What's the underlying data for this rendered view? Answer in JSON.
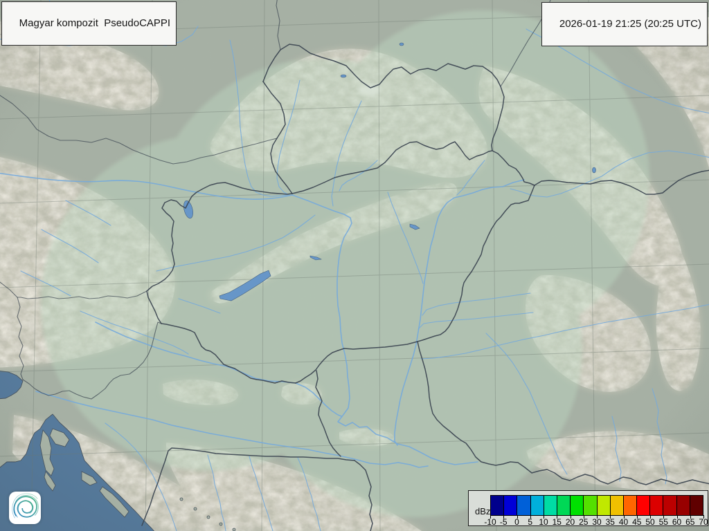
{
  "header": {
    "product_label": "Magyar kompozit  PseudoCAPPI",
    "timestamp": "2026-01-19 21:25 (20:25 UTC)"
  },
  "legend": {
    "unit": "dBz",
    "tick_values": [
      "-10",
      "-5",
      "0",
      "5",
      "10",
      "15",
      "20",
      "25",
      "30",
      "35",
      "40",
      "45",
      "50",
      "55",
      "60",
      "65",
      "70"
    ],
    "colors": [
      "#00008c",
      "#0000d8",
      "#0060d8",
      "#00b0dc",
      "#00dca4",
      "#00d856",
      "#00e000",
      "#54e000",
      "#c0e800",
      "#f0c000",
      "#ff6600",
      "#ff0000",
      "#dc0000",
      "#bc0000",
      "#980000",
      "#600000"
    ]
  },
  "map_colors": {
    "land": "#a6b0a4",
    "radar_tint": "#bdd7c1",
    "sea": "#567a9c",
    "river": "#76aadc",
    "lake": "#6796c8",
    "border": "#3b4450",
    "mountain": "#d8d0bf"
  },
  "logo": {
    "icon": "met-spiral-logo",
    "color_start": "#2f86c4",
    "color_end": "#43b27c"
  }
}
